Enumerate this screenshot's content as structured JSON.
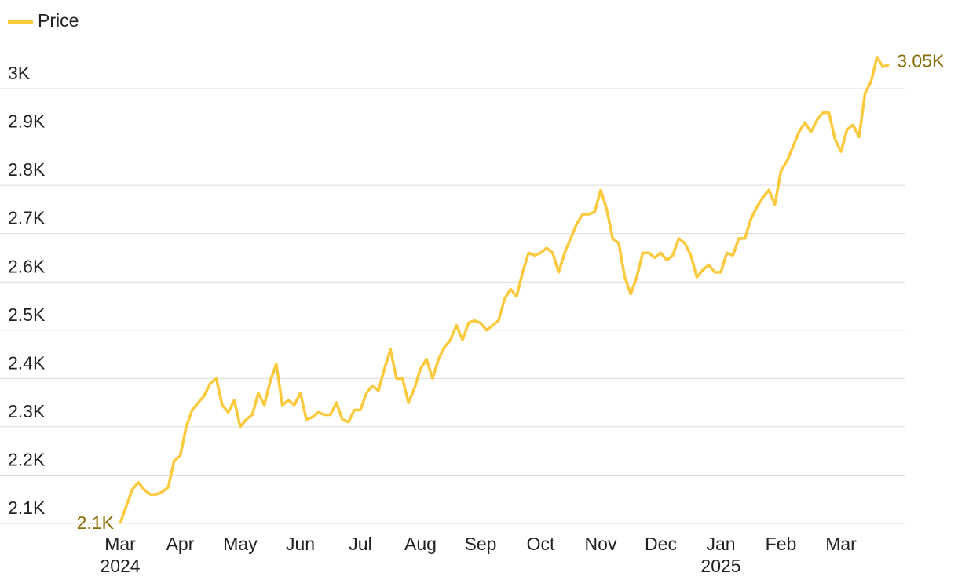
{
  "chart_data": {
    "type": "line",
    "series": [
      {
        "name": "Price",
        "color": "#fcc83c",
        "label_color": "#8c6d05",
        "values": [
          2100,
          2135,
          2170,
          2185,
          2170,
          2160,
          2160,
          2165,
          2175,
          2230,
          2240,
          2300,
          2335,
          2350,
          2365,
          2390,
          2400,
          2345,
          2330,
          2355,
          2300,
          2315,
          2325,
          2370,
          2345,
          2395,
          2430,
          2345,
          2355,
          2345,
          2370,
          2315,
          2320,
          2330,
          2325,
          2325,
          2350,
          2315,
          2310,
          2335,
          2335,
          2370,
          2385,
          2375,
          2420,
          2460,
          2400,
          2400,
          2350,
          2380,
          2420,
          2440,
          2400,
          2440,
          2465,
          2480,
          2510,
          2480,
          2515,
          2520,
          2515,
          2500,
          2510,
          2520,
          2565,
          2585,
          2570,
          2620,
          2660,
          2655,
          2660,
          2670,
          2660,
          2620,
          2660,
          2690,
          2720,
          2740,
          2740,
          2745,
          2790,
          2750,
          2690,
          2680,
          2610,
          2575,
          2610,
          2660,
          2660,
          2650,
          2660,
          2645,
          2655,
          2690,
          2680,
          2655,
          2610,
          2625,
          2635,
          2620,
          2620,
          2660,
          2655,
          2690,
          2690,
          2730,
          2755,
          2775,
          2790,
          2760,
          2830,
          2850,
          2880,
          2910,
          2930,
          2910,
          2935,
          2950,
          2950,
          2895,
          2870,
          2915,
          2925,
          2900,
          2990,
          3015,
          3065,
          3045,
          3050
        ],
        "value_labels": [
          "2.1K",
          null,
          null,
          null,
          null,
          null,
          null,
          null,
          null,
          null,
          null,
          null,
          null,
          null,
          null,
          null,
          null,
          null,
          null,
          null,
          null,
          null,
          null,
          null,
          null,
          null,
          null,
          null,
          null,
          null,
          null,
          null,
          null,
          null,
          null,
          null,
          null,
          null,
          null,
          null,
          null,
          null,
          null,
          null,
          null,
          null,
          null,
          null,
          null,
          null,
          null,
          null,
          null,
          null,
          null,
          null,
          null,
          null,
          null,
          null,
          null,
          null,
          null,
          null,
          null,
          null,
          null,
          null,
          null,
          null,
          null,
          null,
          null,
          null,
          null,
          null,
          null,
          null,
          null,
          null,
          null,
          null,
          null,
          null,
          null,
          null,
          null,
          null,
          null,
          null,
          null,
          null,
          null,
          null,
          null,
          null,
          null,
          null,
          null,
          null,
          null,
          null,
          null,
          null,
          null,
          null,
          null,
          null,
          null,
          null,
          null,
          null,
          null,
          null,
          null,
          null,
          null,
          null,
          null,
          null,
          null,
          null,
          null,
          null,
          null,
          null,
          null,
          null,
          "3.05K"
        ]
      }
    ],
    "categories": [
      "Mar",
      null,
      null,
      null,
      null,
      null,
      null,
      null,
      null,
      null,
      "Apr",
      null,
      null,
      null,
      null,
      null,
      null,
      null,
      null,
      null,
      "May",
      null,
      null,
      null,
      null,
      null,
      null,
      null,
      null,
      null,
      "Jun",
      null,
      null,
      null,
      null,
      null,
      null,
      null,
      null,
      null,
      "Jul",
      null,
      null,
      null,
      null,
      null,
      null,
      null,
      null,
      null,
      "Aug",
      null,
      null,
      null,
      null,
      null,
      null,
      null,
      null,
      null,
      "Sep",
      null,
      null,
      null,
      null,
      null,
      null,
      null,
      null,
      null,
      "Oct",
      null,
      null,
      null,
      null,
      null,
      null,
      null,
      null,
      null,
      "Nov",
      null,
      null,
      null,
      null,
      null,
      null,
      null,
      null,
      null,
      "Dec",
      null,
      null,
      null,
      null,
      null,
      null,
      null,
      null,
      null,
      "Jan",
      null,
      null,
      null,
      null,
      null,
      null,
      null,
      null,
      null,
      "Feb",
      null,
      null,
      null,
      null,
      null,
      null,
      null,
      null,
      null,
      "Mar",
      null,
      null,
      null,
      null,
      null,
      null,
      null,
      null
    ],
    "category_years": [
      "2024",
      null,
      null,
      null,
      null,
      null,
      null,
      null,
      null,
      null,
      null,
      null,
      null,
      null,
      null,
      null,
      null,
      null,
      null,
      null,
      null,
      null,
      null,
      null,
      null,
      null,
      null,
      null,
      null,
      null,
      null,
      null,
      null,
      null,
      null,
      null,
      null,
      null,
      null,
      null,
      null,
      null,
      null,
      null,
      null,
      null,
      null,
      null,
      null,
      null,
      null,
      null,
      null,
      null,
      null,
      null,
      null,
      null,
      null,
      null,
      null,
      null,
      null,
      null,
      null,
      null,
      null,
      null,
      null,
      null,
      null,
      null,
      null,
      null,
      null,
      null,
      null,
      null,
      null,
      null,
      null,
      null,
      null,
      null,
      null,
      null,
      null,
      null,
      null,
      null,
      null,
      null,
      null,
      null,
      null,
      null,
      null,
      null,
      null,
      null,
      "2025",
      null,
      null,
      null,
      null,
      null,
      null,
      null,
      null,
      null,
      null,
      null,
      null,
      null,
      null,
      null,
      null,
      null,
      null,
      null,
      null,
      null,
      null,
      null,
      null,
      null,
      null,
      null,
      null
    ],
    "ylim": [
      2100,
      3000
    ],
    "yticks": [
      {
        "value": 2100,
        "label": "2.1K"
      },
      {
        "value": 2200,
        "label": "2.2K"
      },
      {
        "value": 2300,
        "label": "2.3K"
      },
      {
        "value": 2400,
        "label": "2.4K"
      },
      {
        "value": 2500,
        "label": "2.5K"
      },
      {
        "value": 2600,
        "label": "2.6K"
      },
      {
        "value": 2700,
        "label": "2.7K"
      },
      {
        "value": 2800,
        "label": "2.8K"
      },
      {
        "value": 2900,
        "label": "2.9K"
      },
      {
        "value": 3000,
        "label": "3K"
      }
    ],
    "grid": true
  }
}
